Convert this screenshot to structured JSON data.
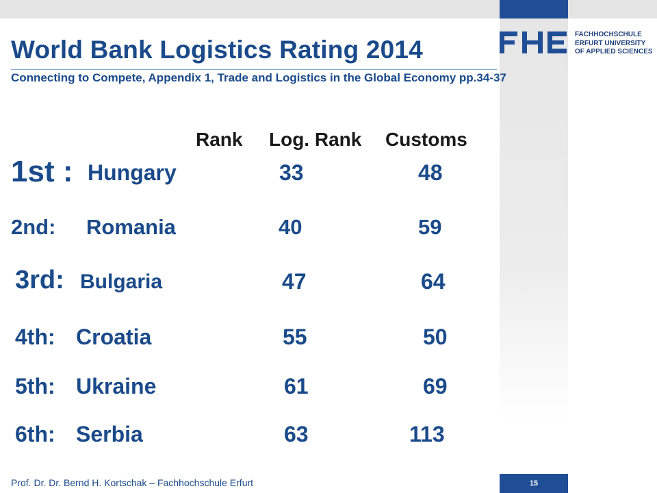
{
  "slide": {
    "title": "World Bank Logistics Rating 2014",
    "subtitle": "Connecting to Compete, Appendix 1, Trade and Logistics in the Global Economy pp.34-37"
  },
  "logo": {
    "mark": "FHE",
    "lines": [
      "FACHHOCHSCHULE",
      "ERFURT UNIVERSITY",
      "OF APPLIED SCIENCES"
    ]
  },
  "table": {
    "headers": {
      "rank": "Rank",
      "log_rank": "Log. Rank",
      "customs": "Customs"
    },
    "rows": [
      {
        "place": "1st :",
        "country": "Hungary",
        "log_rank": "33",
        "customs": "48"
      },
      {
        "place": "2nd:",
        "country": "Romania",
        "log_rank": "40",
        "customs": "59"
      },
      {
        "place": "3rd:",
        "country": "Bulgaria",
        "log_rank": "47",
        "customs": "64"
      },
      {
        "place": "4th:",
        "country": "Croatia",
        "log_rank": "55",
        "customs": "50"
      },
      {
        "place": "5th:",
        "country": "Ukraine",
        "log_rank": "61",
        "customs": "69"
      },
      {
        "place": "6th:",
        "country": "Serbia",
        "log_rank": "63",
        "customs": "113"
      }
    ]
  },
  "footer": {
    "author": "Prof. Dr. Dr. Bernd H. Kortschak – Fachhochschule Erfurt",
    "page_number": "15"
  }
}
